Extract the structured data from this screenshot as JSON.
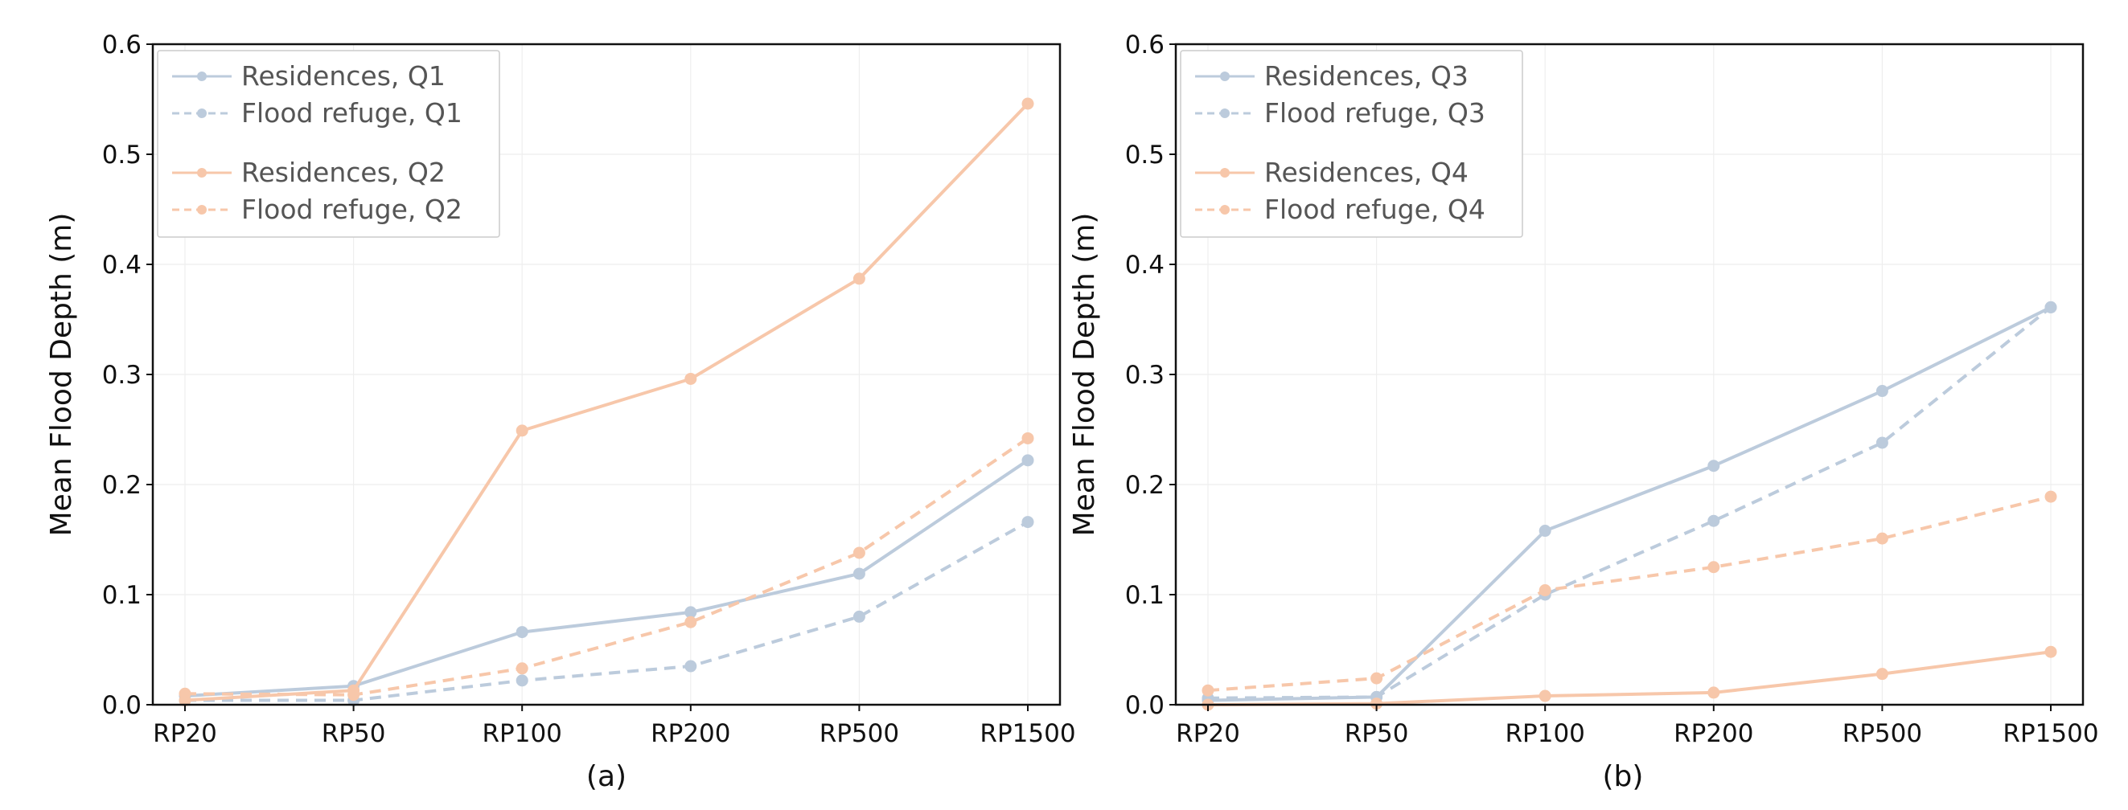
{
  "chart_data": [
    {
      "type": "line",
      "panel_label": "(a)",
      "ylabel": "Mean Flood Depth (m)",
      "xlabel": "",
      "categories": [
        "RP20",
        "RP50",
        "RP100",
        "RP200",
        "RP500",
        "RP1500"
      ],
      "ylim": [
        0,
        0.6
      ],
      "yticks": [
        "0.0",
        "0.1",
        "0.2",
        "0.3",
        "0.4",
        "0.5",
        "0.6"
      ],
      "grid": true,
      "legend_position": "top-left",
      "series": [
        {
          "name": "Residences, Q1",
          "color": "#bccbdc",
          "style": "solid",
          "values": [
            0.008,
            0.017,
            0.066,
            0.084,
            0.119,
            0.222
          ]
        },
        {
          "name": "Flood refuge, Q1",
          "color": "#bccbdc",
          "style": "dashed",
          "values": [
            0.004,
            0.004,
            0.022,
            0.035,
            0.08,
            0.166
          ]
        },
        {
          "name": "Residences, Q2",
          "color": "#f7c7aa",
          "style": "solid",
          "values": [
            0.004,
            0.013,
            0.249,
            0.296,
            0.387,
            0.546
          ]
        },
        {
          "name": "Flood refuge, Q2",
          "color": "#f7c7aa",
          "style": "dashed",
          "values": [
            0.01,
            0.009,
            0.033,
            0.075,
            0.138,
            0.242
          ]
        }
      ]
    },
    {
      "type": "line",
      "panel_label": "(b)",
      "ylabel": "Mean Flood Depth (m)",
      "xlabel": "",
      "categories": [
        "RP20",
        "RP50",
        "RP100",
        "RP200",
        "RP500",
        "RP1500"
      ],
      "ylim": [
        0,
        0.6
      ],
      "yticks": [
        "0.0",
        "0.1",
        "0.2",
        "0.3",
        "0.4",
        "0.5",
        "0.6"
      ],
      "grid": true,
      "legend_position": "top-left",
      "series": [
        {
          "name": "Residences, Q3",
          "color": "#bccbdc",
          "style": "solid",
          "values": [
            0.004,
            0.007,
            0.158,
            0.217,
            0.285,
            0.361
          ]
        },
        {
          "name": "Flood refuge, Q3",
          "color": "#bccbdc",
          "style": "dashed",
          "values": [
            0.006,
            0.007,
            0.1,
            0.167,
            0.238,
            0.361
          ]
        },
        {
          "name": "Residences, Q4",
          "color": "#f7c7aa",
          "style": "solid",
          "values": [
            0.0,
            0.001,
            0.008,
            0.011,
            0.028,
            0.048
          ]
        },
        {
          "name": "Flood refuge, Q4",
          "color": "#f7c7aa",
          "style": "dashed",
          "values": [
            0.013,
            0.024,
            0.104,
            0.125,
            0.151,
            0.189
          ]
        }
      ]
    }
  ]
}
